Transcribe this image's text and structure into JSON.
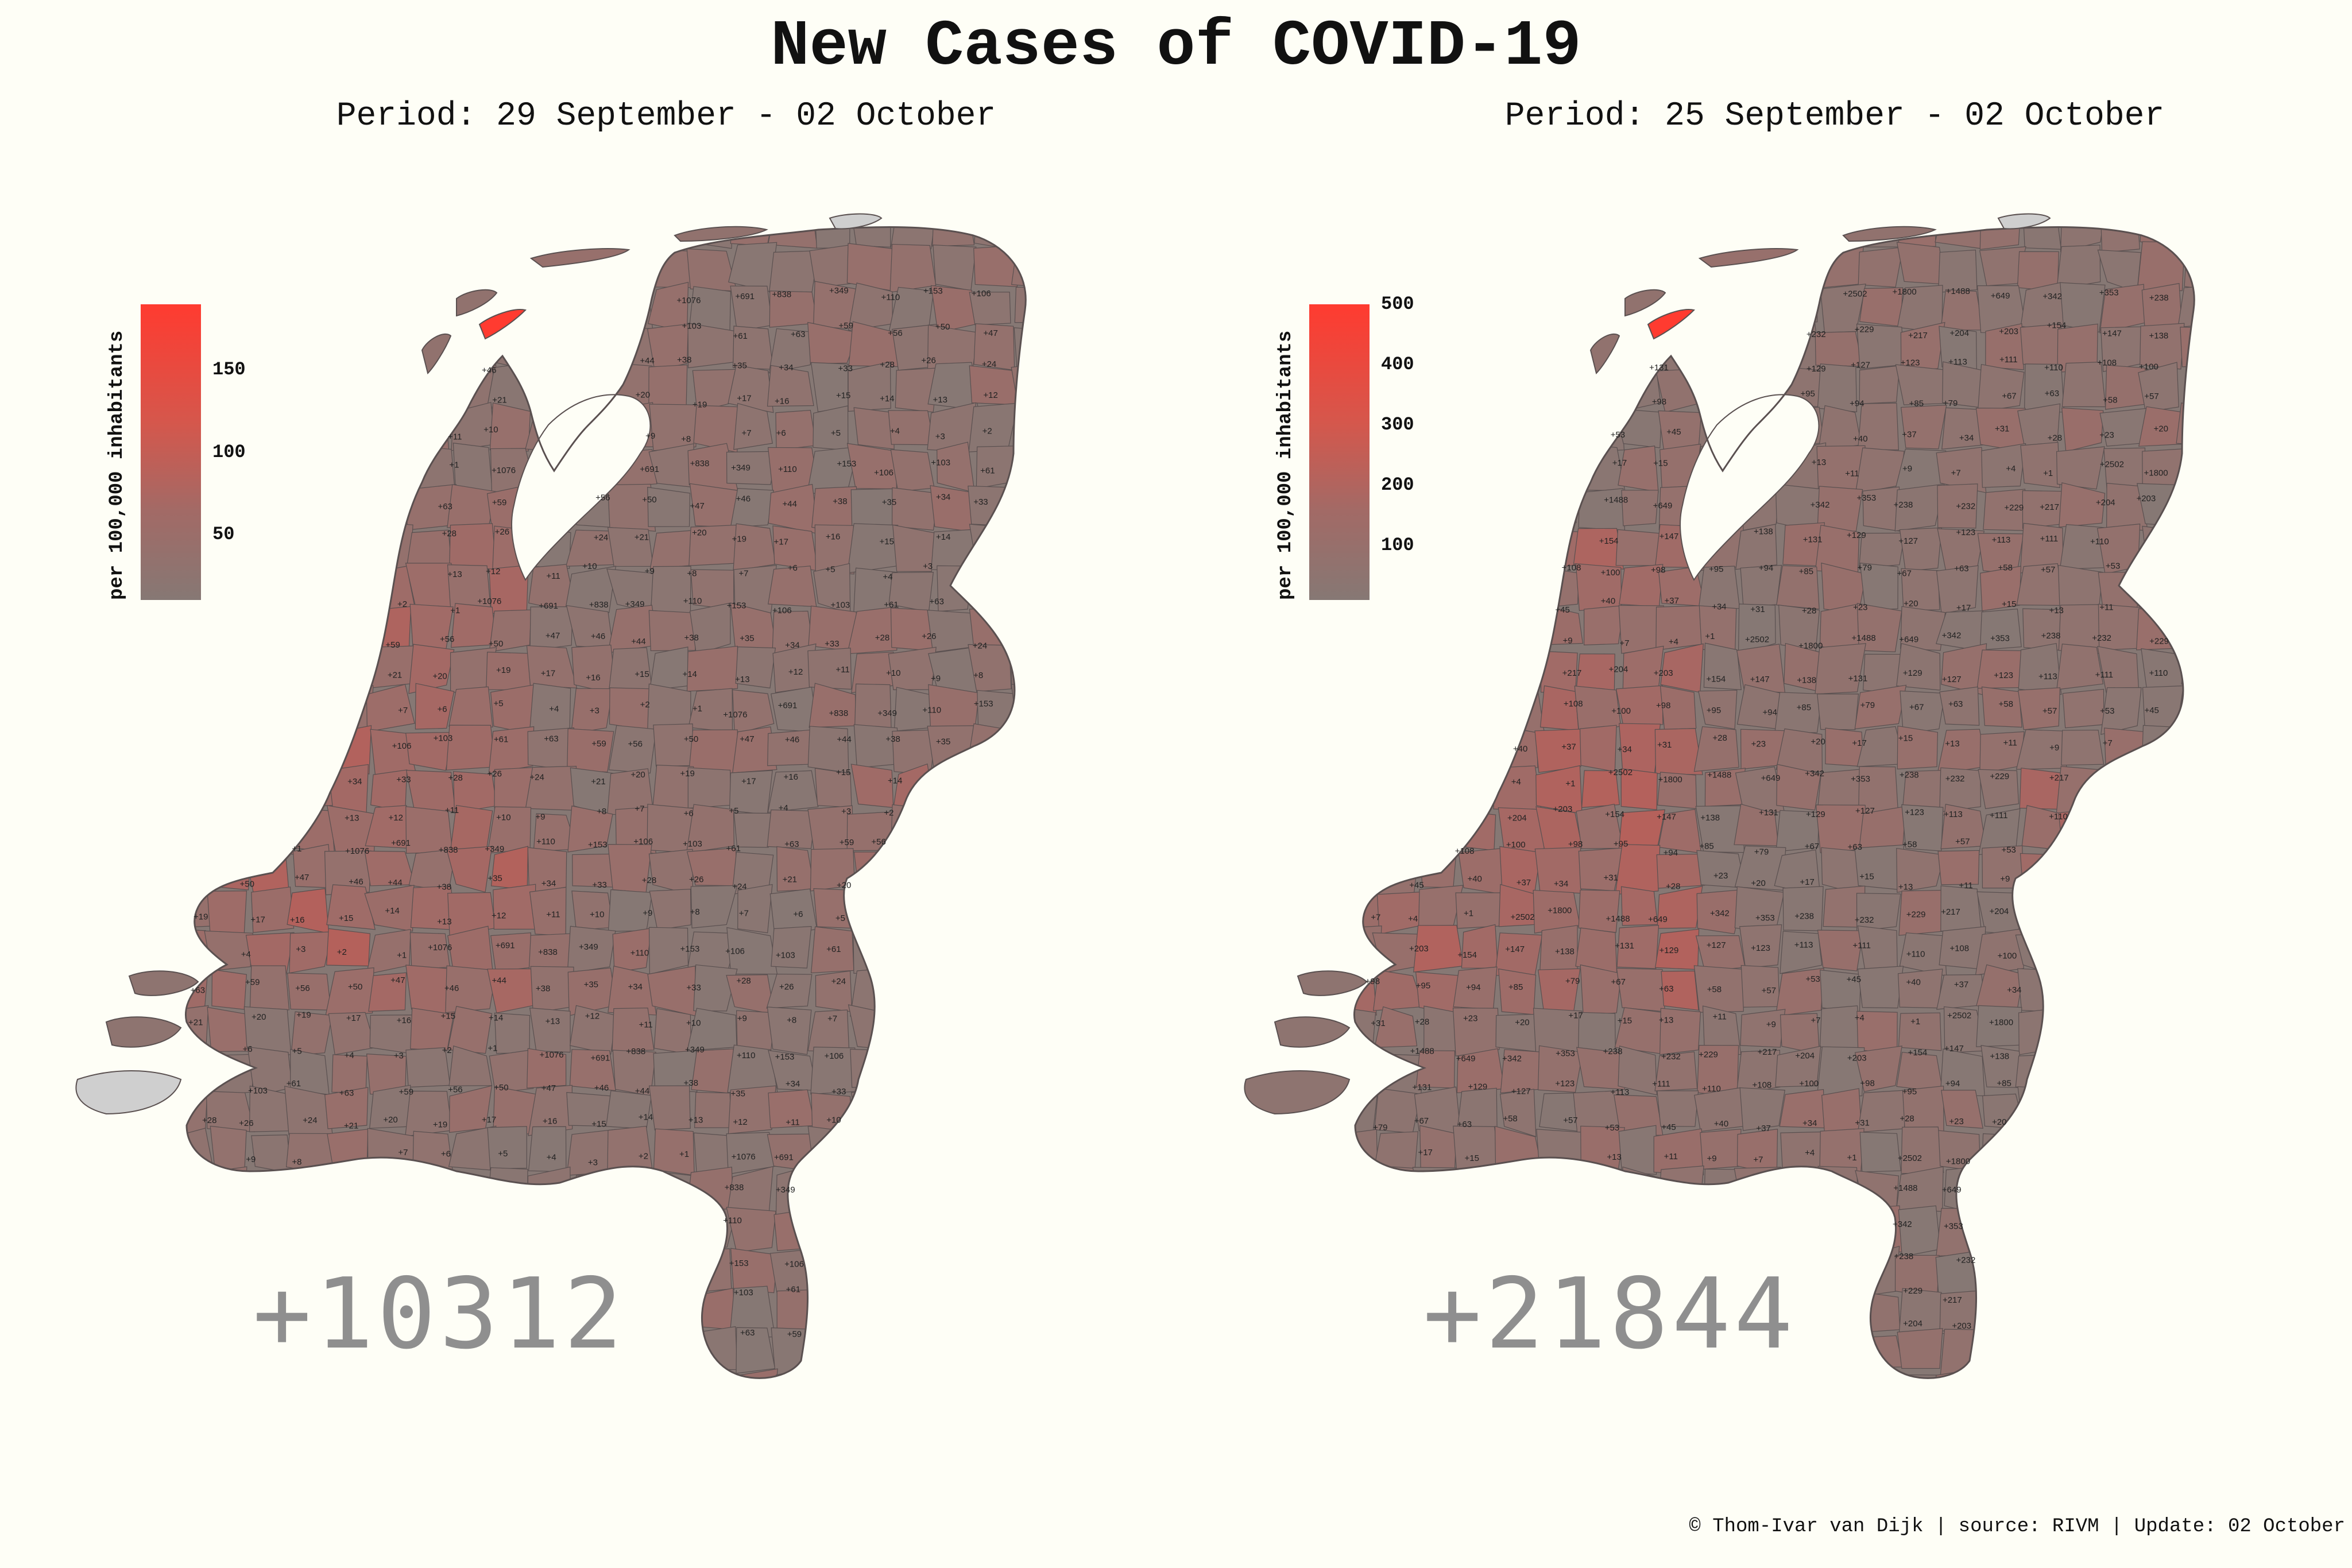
{
  "title": "New Cases of COVID-19",
  "credit": "© Thom-Ivar van Dijk | source: RIVM | Update: 02 October",
  "colors": {
    "background": "#fefef6",
    "low": "#867874",
    "mid": "#a26a66",
    "high": "#ff3b30",
    "no_data": "#cfcfcf",
    "border": "#5a5050",
    "total_text": "#8f8f8f"
  },
  "panels": [
    {
      "id": "left",
      "subtitle": "Period: 29 September - 02 October",
      "total": "+10312",
      "legend": {
        "label": "per 100,000 inhabitants",
        "ticks": [
          "150",
          "100",
          "50"
        ],
        "tick_values": [
          150,
          100,
          50
        ],
        "max": 190,
        "min": 10
      },
      "labels": [
        {
          "t": "+1076",
          "level": 0.8
        },
        {
          "t": "+691",
          "level": 0.7
        },
        {
          "t": "+838",
          "level": 0.75
        },
        {
          "t": "+349",
          "level": 0.55
        },
        {
          "t": "+110",
          "level": 0.6
        },
        {
          "t": "+153",
          "level": 0.5
        },
        {
          "t": "+106",
          "level": 0.4
        },
        {
          "t": "+103",
          "level": 0.3
        },
        {
          "t": "+61",
          "level": 0.45
        },
        {
          "t": "+63",
          "level": 0.4
        },
        {
          "t": "+59",
          "level": 0.3
        },
        {
          "t": "+56",
          "level": 0.5
        },
        {
          "t": "+50",
          "level": 0.4
        },
        {
          "t": "+47",
          "level": 0.5
        },
        {
          "t": "+46",
          "level": 0.45
        },
        {
          "t": "+44",
          "level": 0.3
        },
        {
          "t": "+38",
          "level": 0.95
        },
        {
          "t": "+35",
          "level": 0.95
        },
        {
          "t": "+34",
          "level": 0.6
        },
        {
          "t": "+33",
          "level": 0.45
        },
        {
          "t": "+28",
          "level": 0.3
        },
        {
          "t": "+26",
          "level": 0.55
        },
        {
          "t": "+24",
          "level": 0.5
        },
        {
          "t": "+21",
          "level": 0.3
        },
        {
          "t": "+20",
          "level": 0.3
        },
        {
          "t": "+19",
          "level": 0.55
        },
        {
          "t": "+17",
          "level": 0.3
        },
        {
          "t": "+16",
          "level": 0.3
        },
        {
          "t": "+15",
          "level": 0.3
        },
        {
          "t": "+14",
          "level": 0.3
        },
        {
          "t": "+13",
          "level": 0.3
        },
        {
          "t": "+12",
          "level": 0.3
        },
        {
          "t": "+11",
          "level": 0.25
        },
        {
          "t": "+10",
          "level": 0.25
        },
        {
          "t": "+9",
          "level": 0.25
        },
        {
          "t": "+8",
          "level": 0.25
        },
        {
          "t": "+7",
          "level": 0.2
        },
        {
          "t": "+6",
          "level": 0.2
        },
        {
          "t": "+5",
          "level": 0.2
        },
        {
          "t": "+4",
          "level": 0.15
        },
        {
          "t": "+3",
          "level": 0.15
        },
        {
          "t": "+2",
          "level": 0.1
        },
        {
          "t": "+1",
          "level": 0.05
        }
      ]
    },
    {
      "id": "right",
      "subtitle": "Period: 25 September - 02 October",
      "total": "+21844",
      "legend": {
        "label": "per 100,000 inhabitants",
        "ticks": [
          "500",
          "400",
          "300",
          "200",
          "100"
        ],
        "tick_values": [
          500,
          400,
          300,
          200,
          100
        ],
        "max": 500,
        "min": 10
      },
      "labels": [
        {
          "t": "+2502",
          "level": 0.8
        },
        {
          "t": "+1800",
          "level": 0.7
        },
        {
          "t": "+1488",
          "level": 0.7
        },
        {
          "t": "+649",
          "level": 0.55
        },
        {
          "t": "+342",
          "level": 0.5
        },
        {
          "t": "+353",
          "level": 0.55
        },
        {
          "t": "+238",
          "level": 0.6
        },
        {
          "t": "+232",
          "level": 0.3
        },
        {
          "t": "+229",
          "level": 0.4
        },
        {
          "t": "+217",
          "level": 0.4
        },
        {
          "t": "+204",
          "level": 0.45
        },
        {
          "t": "+203",
          "level": 0.4
        },
        {
          "t": "+154",
          "level": 0.45
        },
        {
          "t": "+147",
          "level": 0.35
        },
        {
          "t": "+138",
          "level": 0.35
        },
        {
          "t": "+131",
          "level": 0.3
        },
        {
          "t": "+129",
          "level": 0.35
        },
        {
          "t": "+127",
          "level": 0.4
        },
        {
          "t": "+123",
          "level": 0.3
        },
        {
          "t": "+113",
          "level": 0.45
        },
        {
          "t": "+111",
          "level": 0.35
        },
        {
          "t": "+110",
          "level": 0.3
        },
        {
          "t": "+108",
          "level": 0.35
        },
        {
          "t": "+100",
          "level": 0.4
        },
        {
          "t": "+98",
          "level": 0.45
        },
        {
          "t": "+95",
          "level": 0.4
        },
        {
          "t": "+94",
          "level": 0.3
        },
        {
          "t": "+85",
          "level": 0.4
        },
        {
          "t": "+79",
          "level": 0.3
        },
        {
          "t": "+67",
          "level": 0.95
        },
        {
          "t": "+63",
          "level": 0.35
        },
        {
          "t": "+58",
          "level": 0.3
        },
        {
          "t": "+57",
          "level": 0.6
        },
        {
          "t": "+53",
          "level": 0.45
        },
        {
          "t": "+45",
          "level": 0.35
        },
        {
          "t": "+40",
          "level": 0.3
        },
        {
          "t": "+37",
          "level": 0.3
        },
        {
          "t": "+34",
          "level": 0.45
        },
        {
          "t": "+31",
          "level": 0.3
        },
        {
          "t": "+28",
          "level": 0.3
        },
        {
          "t": "+23",
          "level": 0.25
        },
        {
          "t": "+20",
          "level": 0.25
        },
        {
          "t": "+17",
          "level": 0.2
        },
        {
          "t": "+15",
          "level": 0.2
        },
        {
          "t": "+13",
          "level": 0.2
        },
        {
          "t": "+11",
          "level": 0.15
        },
        {
          "t": "+9",
          "level": 0.15
        },
        {
          "t": "+7",
          "level": 0.1
        },
        {
          "t": "+4",
          "level": 0.1
        },
        {
          "t": "+1",
          "level": 0.05
        }
      ]
    }
  ]
}
